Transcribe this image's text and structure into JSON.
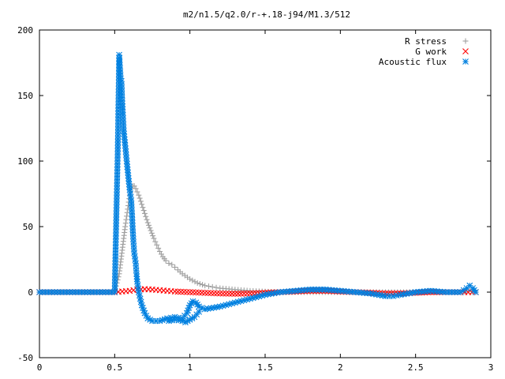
{
  "chart_data": {
    "type": "scatter",
    "title": "m2/n1.5/q2.0/r-+.18-j94/M1.3/512",
    "xlabel": "",
    "ylabel": "",
    "xlim": [
      0,
      3
    ],
    "ylim": [
      -50,
      200
    ],
    "x_ticks": [
      0,
      0.5,
      1,
      1.5,
      2,
      2.5,
      3
    ],
    "x_tick_labels": [
      "0",
      "0.5",
      "1",
      "1.5",
      "2",
      "2.5",
      "3"
    ],
    "y_ticks": [
      -50,
      0,
      50,
      100,
      150,
      200
    ],
    "y_tick_labels": [
      "-50",
      "0",
      "50",
      "100",
      "150",
      "200"
    ],
    "grid": false,
    "legend_position": "top-right",
    "series": [
      {
        "name": "R stress",
        "marker": "plus",
        "color": "#a0a0a0",
        "points": [
          [
            0.0,
            0
          ],
          [
            0.1,
            0
          ],
          [
            0.2,
            0
          ],
          [
            0.3,
            0
          ],
          [
            0.4,
            0
          ],
          [
            0.5,
            0
          ],
          [
            0.53,
            14
          ],
          [
            0.54,
            23
          ],
          [
            0.55,
            32
          ],
          [
            0.56,
            41
          ],
          [
            0.57,
            50
          ],
          [
            0.58,
            58
          ],
          [
            0.59,
            66
          ],
          [
            0.6,
            74
          ],
          [
            0.61,
            79
          ],
          [
            0.62,
            81
          ],
          [
            0.63,
            81
          ],
          [
            0.64,
            79
          ],
          [
            0.66,
            74
          ],
          [
            0.68,
            67
          ],
          [
            0.7,
            60
          ],
          [
            0.72,
            53
          ],
          [
            0.74,
            47
          ],
          [
            0.76,
            41
          ],
          [
            0.78,
            36
          ],
          [
            0.8,
            31
          ],
          [
            0.82,
            27
          ],
          [
            0.84,
            24
          ],
          [
            0.86,
            22
          ],
          [
            0.88,
            21
          ],
          [
            0.9,
            19
          ],
          [
            0.92,
            17
          ],
          [
            0.95,
            14
          ],
          [
            1.0,
            10
          ],
          [
            1.05,
            7
          ],
          [
            1.1,
            5
          ],
          [
            1.15,
            4
          ],
          [
            1.2,
            3
          ],
          [
            1.3,
            2
          ],
          [
            1.4,
            1
          ],
          [
            1.5,
            0.5
          ],
          [
            1.6,
            0
          ],
          [
            1.8,
            0
          ],
          [
            2.0,
            0
          ],
          [
            2.2,
            0
          ],
          [
            2.4,
            0
          ],
          [
            2.6,
            0
          ],
          [
            2.8,
            0
          ],
          [
            2.85,
            1
          ],
          [
            2.9,
            0
          ]
        ]
      },
      {
        "name": "G work",
        "marker": "cross",
        "color": "#ff0000",
        "points": [
          [
            0.0,
            0
          ],
          [
            0.2,
            0
          ],
          [
            0.4,
            0
          ],
          [
            0.5,
            0
          ],
          [
            0.55,
            0.5
          ],
          [
            0.6,
            1
          ],
          [
            0.65,
            2
          ],
          [
            0.7,
            2.3
          ],
          [
            0.75,
            2
          ],
          [
            0.8,
            1.5
          ],
          [
            0.85,
            1
          ],
          [
            0.9,
            0.5
          ],
          [
            1.0,
            0
          ],
          [
            1.1,
            -0.5
          ],
          [
            1.2,
            -1
          ],
          [
            1.3,
            -1.2
          ],
          [
            1.4,
            -1
          ],
          [
            1.5,
            -0.5
          ],
          [
            1.6,
            0
          ],
          [
            1.7,
            0.5
          ],
          [
            1.8,
            1
          ],
          [
            1.9,
            1
          ],
          [
            2.0,
            0.5
          ],
          [
            2.1,
            0
          ],
          [
            2.2,
            -0.5
          ],
          [
            2.3,
            -1
          ],
          [
            2.4,
            -1
          ],
          [
            2.5,
            -0.5
          ],
          [
            2.6,
            0
          ],
          [
            2.7,
            0
          ],
          [
            2.8,
            0
          ],
          [
            2.85,
            0
          ],
          [
            2.9,
            0
          ]
        ]
      },
      {
        "name": "Acoustic flux",
        "marker": "star",
        "color": "#0080e0",
        "points": [
          [
            0.0,
            0
          ],
          [
            0.1,
            0
          ],
          [
            0.2,
            0
          ],
          [
            0.3,
            0
          ],
          [
            0.4,
            0
          ],
          [
            0.5,
            0
          ],
          [
            0.52,
            105
          ],
          [
            0.53,
            181
          ],
          [
            0.54,
            163
          ],
          [
            0.545,
            161
          ],
          [
            0.55,
            146
          ],
          [
            0.555,
            135
          ],
          [
            0.56,
            123
          ],
          [
            0.57,
            112
          ],
          [
            0.58,
            100
          ],
          [
            0.59,
            89
          ],
          [
            0.6,
            78
          ],
          [
            0.61,
            70
          ],
          [
            0.615,
            60
          ],
          [
            0.62,
            48
          ],
          [
            0.625,
            38
          ],
          [
            0.63,
            30
          ],
          [
            0.64,
            22
          ],
          [
            0.645,
            14
          ],
          [
            0.65,
            8
          ],
          [
            0.66,
            0
          ],
          [
            0.67,
            -5
          ],
          [
            0.68,
            -10
          ],
          [
            0.7,
            -16
          ],
          [
            0.72,
            -20
          ],
          [
            0.75,
            -22
          ],
          [
            0.8,
            -22
          ],
          [
            0.85,
            -20
          ],
          [
            0.9,
            -19
          ],
          [
            0.95,
            -20
          ],
          [
            0.98,
            -16
          ],
          [
            1.0,
            -10
          ],
          [
            1.02,
            -7
          ],
          [
            1.04,
            -8
          ],
          [
            1.06,
            -11
          ],
          [
            1.1,
            -13
          ],
          [
            1.2,
            -11
          ],
          [
            1.3,
            -8
          ],
          [
            1.4,
            -5
          ],
          [
            1.5,
            -2
          ],
          [
            1.6,
            0
          ],
          [
            1.7,
            1
          ],
          [
            1.8,
            2
          ],
          [
            1.9,
            2
          ],
          [
            2.0,
            1
          ],
          [
            2.1,
            0
          ],
          [
            2.2,
            -1
          ],
          [
            2.3,
            -3
          ],
          [
            2.35,
            -3
          ],
          [
            2.4,
            -2
          ],
          [
            2.5,
            0
          ],
          [
            2.6,
            1
          ],
          [
            2.7,
            0
          ],
          [
            2.8,
            0
          ],
          [
            2.84,
            3
          ],
          [
            2.86,
            5
          ],
          [
            2.88,
            3
          ],
          [
            2.9,
            0
          ]
        ]
      }
    ],
    "extra_points": [
      {
        "series": "Acoustic flux",
        "points": [
          [
            0.86,
            -22
          ],
          [
            0.9,
            -21
          ],
          [
            0.95,
            -22
          ],
          [
            0.97,
            -23
          ],
          [
            1.0,
            -21
          ],
          [
            1.03,
            -19
          ],
          [
            1.06,
            -15
          ]
        ]
      }
    ]
  }
}
